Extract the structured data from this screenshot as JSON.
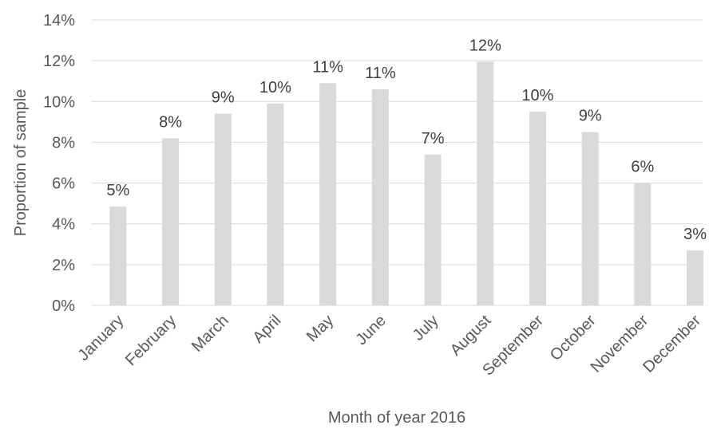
{
  "chart_data": {
    "type": "bar",
    "x_label": "Month of year 2016",
    "y_label": "Proportion of sample",
    "categories": [
      "January",
      "February",
      "March",
      "April",
      "May",
      "June",
      "July",
      "August",
      "September",
      "October",
      "November",
      "December"
    ],
    "values": [
      4.85,
      8.2,
      9.4,
      9.9,
      10.9,
      10.6,
      7.4,
      11.95,
      9.5,
      8.5,
      6.0,
      2.7
    ],
    "value_labels": [
      "5%",
      "8%",
      "9%",
      "10%",
      "11%",
      "11%",
      "7%",
      "12%",
      "10%",
      "9%",
      "6%",
      "3%"
    ],
    "color": "#d9d9d9",
    "ylim": [
      0,
      14
    ],
    "yticks": [
      {
        "value": 0,
        "label": "0%"
      },
      {
        "value": 2,
        "label": "2%"
      },
      {
        "value": 4,
        "label": "4%"
      },
      {
        "value": 6,
        "label": "6%"
      },
      {
        "value": 8,
        "label": "8%"
      },
      {
        "value": 10,
        "label": "10%"
      },
      {
        "value": 12,
        "label": "12%"
      },
      {
        "value": 14,
        "label": "14%"
      }
    ],
    "grid": true
  }
}
